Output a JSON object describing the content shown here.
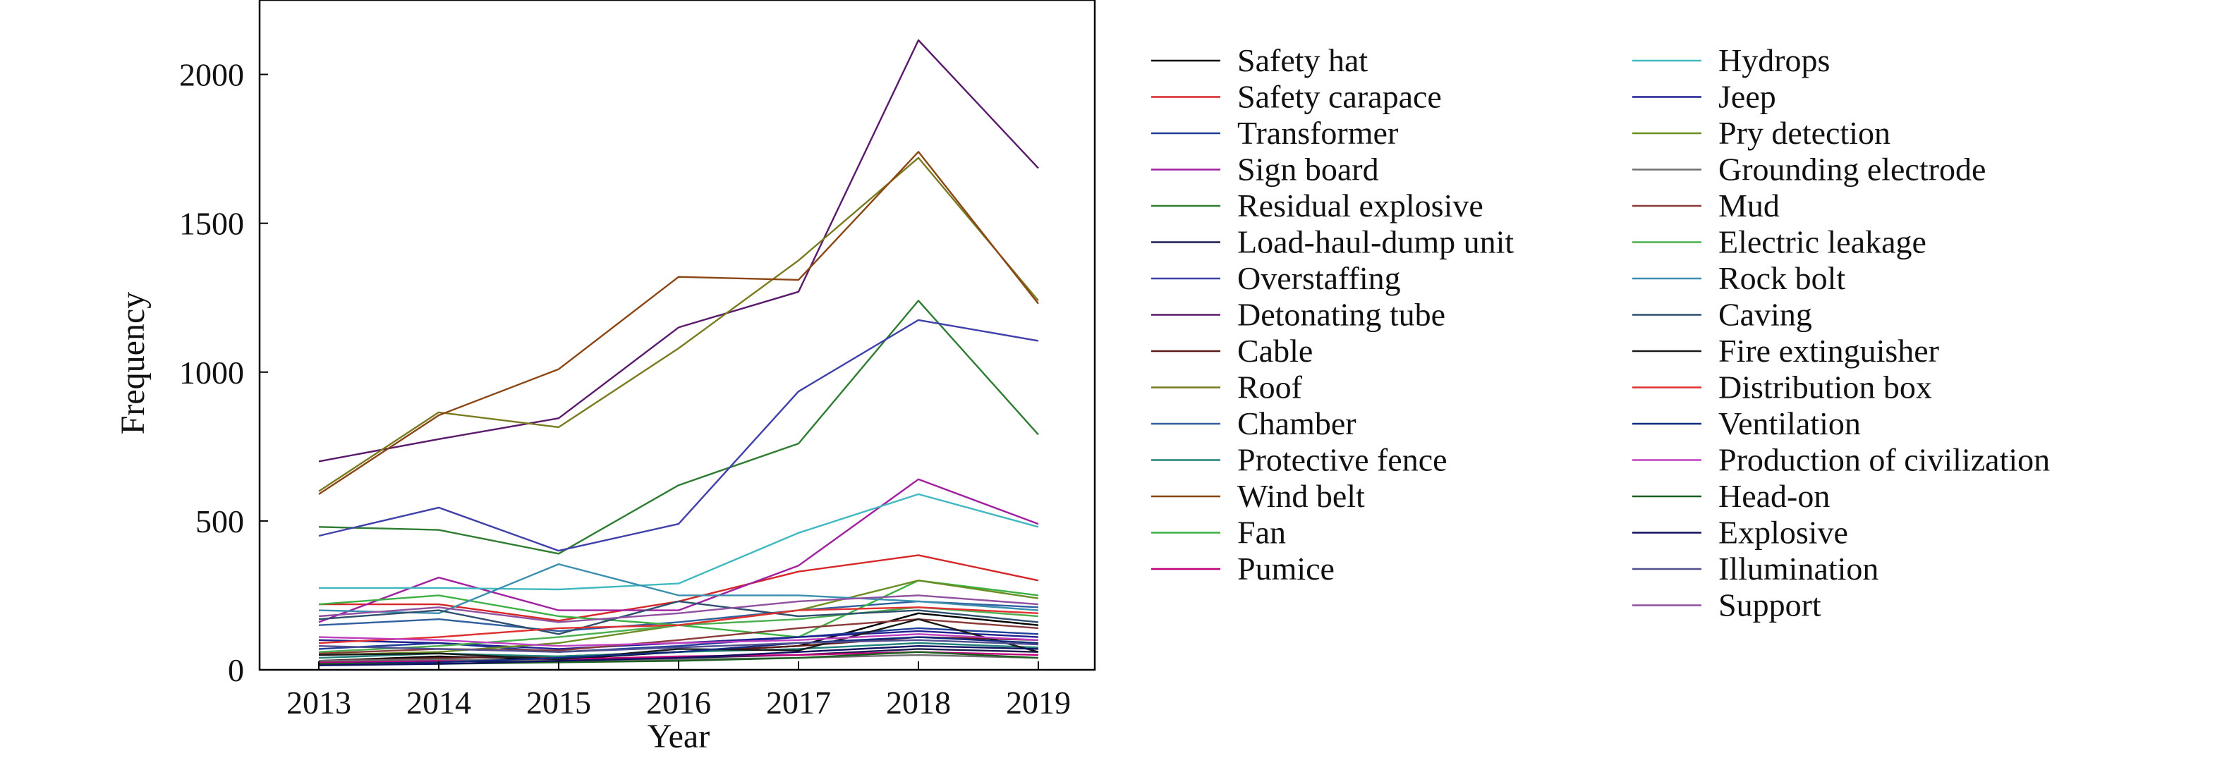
{
  "chart_data": {
    "type": "line",
    "xlabel": "Year",
    "ylabel": "Frequency",
    "xlim": [
      2013,
      2019
    ],
    "ylim": [
      0,
      2250
    ],
    "x": [
      2013,
      2014,
      2015,
      2016,
      2017,
      2018,
      2019
    ],
    "x_tick_labels": [
      "2013",
      "2014",
      "2015",
      "2016",
      "2017",
      "2018",
      "2019"
    ],
    "y_ticks": [
      0,
      500,
      1000,
      1500,
      2000
    ],
    "y_tick_labels": [
      "0",
      "500",
      "1000",
      "1500",
      "2000"
    ],
    "legend": "right, two columns, outside plot",
    "grid": false,
    "series": [
      {
        "name": "Safety hat",
        "color": "#000000",
        "values": [
          30,
          45,
          35,
          60,
          80,
          190,
          150
        ]
      },
      {
        "name": "Safety carapace",
        "color": "#d62728",
        "values": [
          220,
          220,
          165,
          230,
          330,
          385,
          300
        ]
      },
      {
        "name": "Transformer",
        "color": "#1f3f99",
        "values": [
          70,
          90,
          60,
          80,
          110,
          140,
          120
        ]
      },
      {
        "name": "Sign board",
        "color": "#a020a0",
        "values": [
          160,
          310,
          200,
          200,
          350,
          640,
          490
        ]
      },
      {
        "name": "Residual explosive",
        "color": "#2e7d32",
        "values": [
          480,
          470,
          390,
          620,
          760,
          1240,
          790
        ]
      },
      {
        "name": "Load-haul-dump unit",
        "color": "#1a1a4d",
        "values": [
          20,
          30,
          25,
          40,
          50,
          70,
          60
        ]
      },
      {
        "name": "Overstaffing",
        "color": "#4040aa",
        "values": [
          450,
          545,
          400,
          490,
          935,
          1175,
          1105
        ]
      },
      {
        "name": "Detonating tube",
        "color": "#5a1a6b",
        "values": [
          700,
          775,
          845,
          1150,
          1270,
          2115,
          1685
        ]
      },
      {
        "name": "Cable",
        "color": "#5c1a1a",
        "values": [
          30,
          40,
          45,
          60,
          80,
          110,
          100
        ]
      },
      {
        "name": "Roof",
        "color": "#7a7a20",
        "values": [
          600,
          865,
          815,
          1080,
          1375,
          1720,
          1240
        ]
      },
      {
        "name": "Chamber",
        "color": "#3060a0",
        "values": [
          150,
          170,
          130,
          160,
          200,
          230,
          210
        ]
      },
      {
        "name": "Protective fence",
        "color": "#20807a",
        "values": [
          40,
          55,
          45,
          60,
          70,
          90,
          75
        ]
      },
      {
        "name": "Wind belt",
        "color": "#8b4513",
        "values": [
          590,
          855,
          1010,
          1320,
          1310,
          1740,
          1230
        ]
      },
      {
        "name": "Fan",
        "color": "#3cb043",
        "values": [
          220,
          250,
          180,
          150,
          110,
          300,
          250
        ]
      },
      {
        "name": "Pumice",
        "color": "#c0007a",
        "values": [
          25,
          30,
          35,
          45,
          50,
          60,
          50
        ]
      },
      {
        "name": "Hydrops",
        "color": "#40b8c0",
        "values": [
          275,
          275,
          270,
          290,
          460,
          590,
          480
        ]
      },
      {
        "name": "Jeep",
        "color": "#202090",
        "values": [
          100,
          90,
          70,
          90,
          110,
          130,
          110
        ]
      },
      {
        "name": "Pry detection",
        "color": "#6b8e23",
        "values": [
          50,
          60,
          90,
          150,
          200,
          300,
          240
        ]
      },
      {
        "name": "Grounding electrode",
        "color": "#707070",
        "values": [
          30,
          35,
          30,
          35,
          40,
          50,
          40
        ]
      },
      {
        "name": "Mud",
        "color": "#8b3a3a",
        "values": [
          55,
          70,
          65,
          100,
          140,
          170,
          140
        ]
      },
      {
        "name": "Electric leakage",
        "color": "#4caf50",
        "values": [
          60,
          80,
          110,
          150,
          170,
          210,
          180
        ]
      },
      {
        "name": "Rock bolt",
        "color": "#3a8fb0",
        "values": [
          200,
          190,
          355,
          250,
          250,
          230,
          200
        ]
      },
      {
        "name": "Caving",
        "color": "#2f4f6f",
        "values": [
          170,
          200,
          120,
          230,
          180,
          200,
          160
        ]
      },
      {
        "name": "Fire extinguisher",
        "color": "#1a1a1a",
        "values": [
          50,
          55,
          35,
          70,
          65,
          170,
          60
        ]
      },
      {
        "name": "Distribution box",
        "color": "#e03030",
        "values": [
          90,
          110,
          140,
          150,
          200,
          210,
          190
        ]
      },
      {
        "name": "Ventilation",
        "color": "#102a80",
        "values": [
          20,
          25,
          40,
          60,
          90,
          110,
          90
        ]
      },
      {
        "name": "Production of civilization",
        "color": "#c040c0",
        "values": [
          110,
          100,
          80,
          90,
          100,
          120,
          100
        ]
      },
      {
        "name": "Head-on",
        "color": "#1b5e20",
        "values": [
          20,
          20,
          25,
          30,
          40,
          60,
          40
        ]
      },
      {
        "name": "Explosive",
        "color": "#101060",
        "values": [
          15,
          20,
          30,
          40,
          60,
          80,
          70
        ]
      },
      {
        "name": "Illumination",
        "color": "#505090",
        "values": [
          80,
          70,
          60,
          75,
          90,
          100,
          85
        ]
      },
      {
        "name": "Support",
        "color": "#9050a0",
        "values": [
          180,
          210,
          160,
          190,
          230,
          250,
          220
        ]
      }
    ]
  }
}
